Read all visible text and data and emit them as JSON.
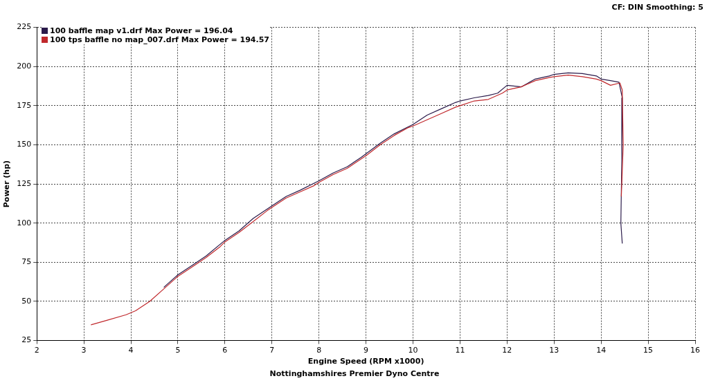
{
  "chart_data": {
    "type": "line",
    "xlabel": "Engine Speed (RPM x1000)",
    "ylabel": "Power (hp)",
    "xlim": [
      2,
      16
    ],
    "xticks": [
      2,
      3,
      4,
      5,
      6,
      7,
      8,
      9,
      10,
      11,
      12,
      13,
      14,
      15,
      16
    ],
    "ylim": [
      25,
      225
    ],
    "yticks": [
      25,
      50,
      75,
      100,
      125,
      150,
      175,
      200,
      225
    ],
    "grid": true,
    "legend": "top left",
    "marker": "none",
    "line_style": "solid",
    "annotations": [
      "CF: DIN  Smoothing: 5",
      "Nottinghamshires Premier Dyno Centre"
    ],
    "series": [
      {
        "name": "100 baffle map v1.drf Max Power = 196.04",
        "color": "#2a1a4a",
        "x": [
          4.7,
          5.0,
          5.3,
          5.6,
          6.0,
          6.3,
          6.6,
          7.0,
          7.3,
          7.6,
          8.0,
          8.3,
          8.6,
          8.9,
          9.3,
          9.6,
          10.0,
          10.3,
          10.6,
          10.9,
          11.0,
          11.3,
          11.6,
          11.8,
          12.0,
          12.3,
          12.6,
          12.9,
          13.0,
          13.3,
          13.6,
          13.9,
          14.0,
          14.2,
          14.38,
          14.45,
          14.44,
          14.42,
          14.45
        ],
        "values": [
          59,
          67,
          73,
          79,
          89,
          95,
          103,
          111,
          117,
          121,
          127,
          132,
          136,
          142,
          151,
          157,
          163,
          169,
          173,
          177,
          178,
          180,
          181.5,
          183,
          188,
          187,
          192,
          194,
          195,
          196,
          195.5,
          194,
          192,
          191,
          190,
          180,
          140,
          100,
          87
        ]
      },
      {
        "name": "100 tps baffle no map_007.drf Max Power = 194.57",
        "color": "#c0282c",
        "x": [
          3.15,
          3.5,
          3.9,
          4.1,
          4.4,
          4.7,
          5.0,
          5.3,
          5.6,
          5.9,
          6.0,
          6.3,
          6.6,
          6.9,
          7.0,
          7.3,
          7.6,
          7.9,
          8.0,
          8.3,
          8.6,
          8.9,
          9.0,
          9.3,
          9.6,
          9.9,
          10.0,
          10.3,
          10.6,
          10.9,
          11.0,
          11.3,
          11.6,
          11.9,
          12.0,
          12.3,
          12.6,
          12.9,
          13.0,
          13.3,
          13.6,
          13.9,
          14.0,
          14.2,
          14.4,
          14.45,
          14.47,
          14.43
        ],
        "values": [
          35,
          38,
          41.5,
          44,
          50,
          58,
          66,
          72,
          78,
          85,
          88,
          94,
          101,
          108,
          110,
          116,
          120,
          124,
          126,
          131,
          135,
          141,
          143,
          150,
          156,
          161,
          162,
          166,
          170,
          174,
          175,
          178,
          179,
          183,
          185,
          187,
          191,
          193,
          193.5,
          194.5,
          193.5,
          192,
          191,
          188,
          189.5,
          185,
          150,
          117
        ]
      }
    ]
  }
}
